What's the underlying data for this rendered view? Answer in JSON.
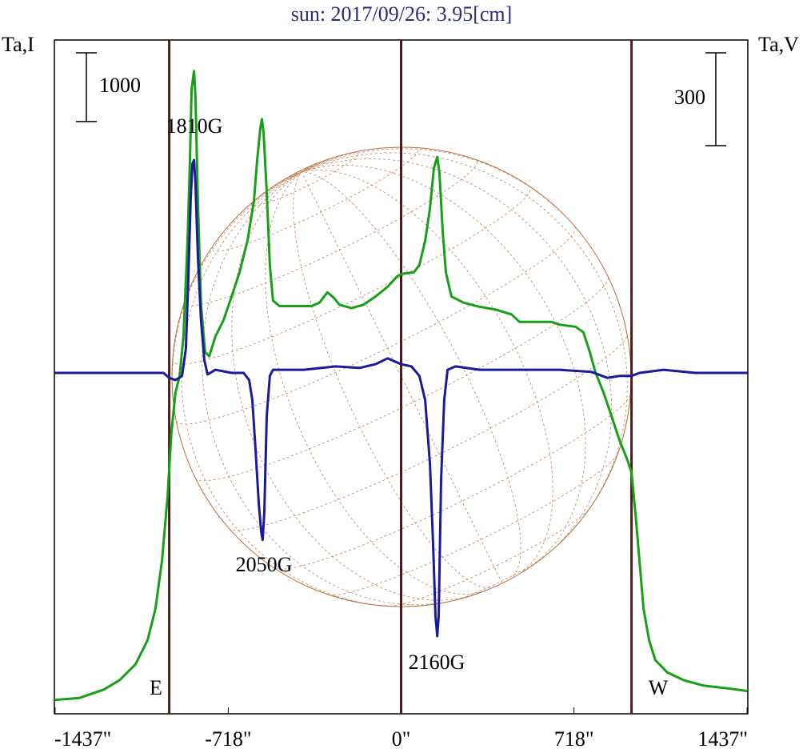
{
  "chart_data": {
    "type": "line",
    "title": "sun: 2017/09/26: 3.95[cm]",
    "y_label": "Ta,I",
    "y2_label": "Ta,V",
    "xlim": [
      -1440,
      1440
    ],
    "ylim": [
      -200,
      9600
    ],
    "y2lim": [
      -1102,
      1076
    ],
    "xticks": [
      {
        "value": -1437,
        "label": "-1437\""
      },
      {
        "value": -718,
        "label": "-718\""
      },
      {
        "value": 0,
        "label": "0\""
      },
      {
        "value": 718,
        "label": "718\""
      },
      {
        "value": 1437,
        "label": "1437\""
      }
    ],
    "scale_bars": [
      {
        "value": 1000,
        "axis": "y"
      },
      {
        "value": 300,
        "axis": "y2"
      }
    ],
    "vlines": [
      -963,
      0,
      957
    ],
    "vline_color": "#4a1c1c",
    "limb_labels": [
      "E",
      "W"
    ],
    "annotations": [
      "1810G",
      "2050G",
      "2160G"
    ],
    "series": [
      {
        "name": "Ta,I",
        "color": "#17a017",
        "axis": "y",
        "x": [
          -1440,
          -1336,
          -1236,
          -1169,
          -1103,
          -1053,
          -1020,
          -993,
          -970,
          -954,
          -937,
          -920,
          -904,
          -887,
          -877,
          -870,
          -860,
          -854,
          -844,
          -831,
          -814,
          -797,
          -771,
          -738,
          -704,
          -671,
          -638,
          -611,
          -598,
          -585,
          -578,
          -571,
          -558,
          -545,
          -532,
          -505,
          -439,
          -372,
          -339,
          -306,
          -279,
          -256,
          -206,
          -156,
          -106,
          -56,
          -17,
          3,
          53,
          76,
          100,
          120,
          136,
          150,
          159,
          173,
          186,
          209,
          259,
          326,
          392,
          458,
          492,
          558,
          625,
          658,
          724,
          757,
          784,
          807,
          841,
          874,
          907,
          940,
          957,
          973,
          990,
          1007,
          1030,
          1056,
          1106,
          1173,
          1256,
          1356,
          1439
        ],
        "values": [
          0,
          30,
          150,
          290,
          520,
          870,
          1330,
          2030,
          2960,
          3890,
          4470,
          4710,
          5290,
          6680,
          7850,
          8890,
          9150,
          8780,
          7270,
          5750,
          5060,
          5000,
          5290,
          5520,
          5870,
          6220,
          6680,
          7270,
          7850,
          8310,
          8450,
          8250,
          7380,
          6330,
          5810,
          5730,
          5730,
          5730,
          5780,
          5930,
          5850,
          5750,
          5700,
          5750,
          5870,
          6010,
          6160,
          6200,
          6220,
          6330,
          6680,
          7150,
          7730,
          7900,
          7670,
          6800,
          6220,
          5870,
          5780,
          5720,
          5680,
          5610,
          5500,
          5500,
          5500,
          5460,
          5430,
          5350,
          5060,
          4770,
          4470,
          4130,
          3780,
          3490,
          3310,
          2730,
          2030,
          1330,
          870,
          580,
          400,
          290,
          210,
          170,
          130
        ]
      },
      {
        "name": "Ta,V",
        "color": "#1a1a9a",
        "axis": "y2",
        "x": [
          -1440,
          -1336,
          -1169,
          -1037,
          -987,
          -963,
          -937,
          -910,
          -894,
          -884,
          -874,
          -867,
          -860,
          -854,
          -844,
          -831,
          -817,
          -804,
          -771,
          -704,
          -654,
          -631,
          -618,
          -605,
          -591,
          -581,
          -575,
          -568,
          -558,
          -545,
          -532,
          -405,
          -272,
          -173,
          -106,
          -56,
          -23,
          0,
          43,
          76,
          100,
          120,
          133,
          143,
          150,
          156,
          166,
          179,
          193,
          226,
          326,
          492,
          658,
          791,
          857,
          907,
          957,
          990,
          1090,
          1223,
          1439
        ],
        "values": [
          0,
          0,
          0,
          0,
          0,
          -16,
          -23,
          -10,
          78,
          300,
          559,
          675,
          688,
          610,
          378,
          171,
          41,
          -5,
          10,
          0,
          0,
          -23,
          -88,
          -243,
          -424,
          -514,
          -540,
          -450,
          -140,
          -10,
          10,
          10,
          21,
          16,
          28,
          47,
          36,
          28,
          21,
          -10,
          -88,
          -295,
          -553,
          -786,
          -851,
          -786,
          -347,
          -88,
          10,
          21,
          10,
          10,
          10,
          3,
          -16,
          -10,
          -10,
          0,
          10,
          0,
          0
        ]
      }
    ]
  }
}
